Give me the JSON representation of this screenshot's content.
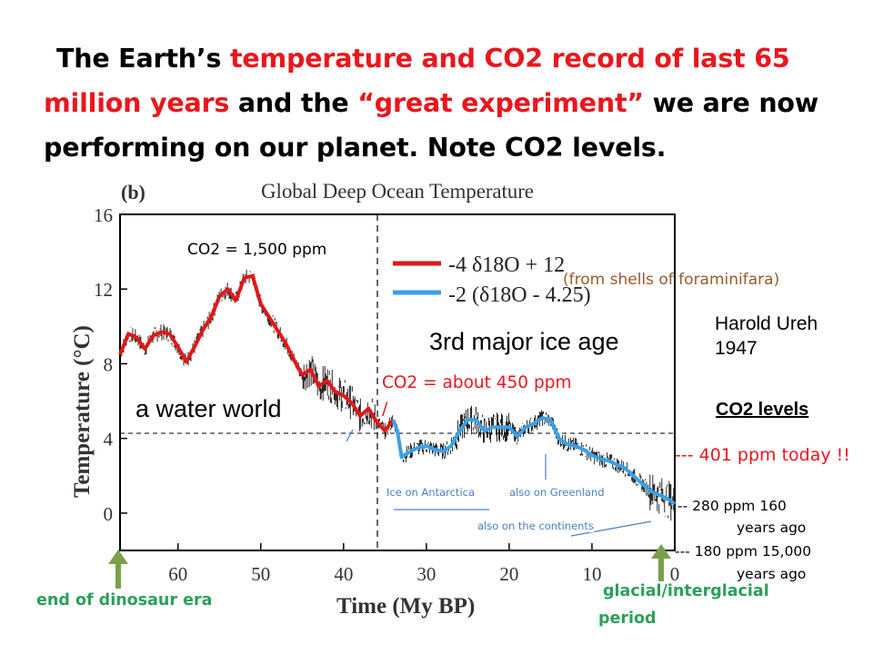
{
  "title": {
    "part1": "The Earth’s ",
    "part2": "temperature and CO2 record of last 65 million years",
    "part3": " and the ",
    "part4": "“great experiment”",
    "part5": " we are now performing  on our planet.   Note CO2 levels."
  },
  "colors": {
    "red_accent": "#e8171d",
    "green_label": "#2ca05a",
    "brown_note": "#9a5a2a",
    "blue_note": "#4b7fbf",
    "curve_red": "#e01818",
    "curve_blue": "#3aa0e8",
    "arrow_green": "#7aa04a"
  },
  "chart_data": {
    "type": "line",
    "panel_label": "(b)",
    "title": "Global Deep Ocean Temperature",
    "xlabel": "Time (My BP)",
    "ylabel": "Temperature (°C)",
    "xlim": [
      67,
      0
    ],
    "ylim": [
      -2,
      16
    ],
    "xticks": [
      60,
      50,
      40,
      30,
      20,
      10,
      0
    ],
    "yticks": [
      0,
      4,
      8,
      12,
      16
    ],
    "reference_hline_y": 5,
    "reference_vline_x": 34,
    "legend": [
      "-4 δ18O + 12",
      "-2 (δ18O - 4.25)"
    ],
    "series": [
      {
        "name": "-4 δ18O + 12",
        "color": "#e01818",
        "x": [
          67,
          66,
          65,
          64,
          63,
          62,
          61,
          60,
          59,
          58,
          57,
          56,
          55,
          54,
          53,
          52,
          51,
          50,
          49,
          48,
          47,
          46,
          45,
          44,
          43,
          42,
          41,
          40,
          39,
          38,
          37,
          36,
          35,
          34
        ],
        "y": [
          8.5,
          9.6,
          9.4,
          8.8,
          9.5,
          9.7,
          9.6,
          8.9,
          8.1,
          8.9,
          9.8,
          10.5,
          11.6,
          12.0,
          11.4,
          12.6,
          12.7,
          11.2,
          10.5,
          9.8,
          9.1,
          8.2,
          7.4,
          7.7,
          6.8,
          7.1,
          6.5,
          6.3,
          5.9,
          5.2,
          5.6,
          4.9,
          4.4,
          5.0
        ]
      },
      {
        "name": "-2 (δ18O - 4.25)",
        "color": "#3aa0e8",
        "x": [
          34,
          33.5,
          33,
          32,
          31,
          30,
          29,
          28,
          27,
          26,
          25,
          24,
          23,
          22,
          21,
          20,
          19,
          18,
          17,
          16,
          15,
          14,
          13,
          12,
          11,
          10,
          9,
          8,
          7,
          6,
          5,
          4,
          3,
          2,
          1,
          0
        ],
        "y": [
          5.0,
          4.4,
          3.0,
          3.3,
          3.5,
          3.6,
          3.4,
          3.3,
          3.6,
          4.4,
          5.0,
          5.0,
          4.4,
          4.6,
          4.6,
          4.6,
          4.1,
          4.6,
          4.8,
          5.1,
          5.0,
          4.0,
          3.7,
          3.6,
          3.4,
          3.1,
          2.9,
          2.8,
          2.6,
          2.4,
          2.0,
          1.6,
          1.2,
          1.0,
          0.8,
          0.5
        ]
      }
    ],
    "annotations": {
      "co2_early": "CO2 = 1,500 ppm",
      "source": "(from shells of  foraminifara)",
      "ice_age": "3rd major ice age",
      "water_world": "a water world",
      "co2_mid": "CO2 =  about 450 ppm",
      "slash": "/",
      "antarctica": "Ice on Antarctica",
      "greenland": "also on Greenland",
      "continents": "also  on  the continents"
    }
  },
  "side": {
    "author_name": "Harold Ureh",
    "author_year": "1947",
    "co2_header": "CO2 levels",
    "today": "--- 401 ppm today !!",
    "ppm280_line1": "--  280 ppm 160",
    "ppm280_line2": "years ago",
    "ppm180_line1": "--- 180 ppm 15,000",
    "ppm180_line2": "years ago"
  },
  "bottom": {
    "dinosaur": "end of dinosaur era",
    "glacial_line1": "glacial/interglacial",
    "glacial_line2": "period"
  }
}
